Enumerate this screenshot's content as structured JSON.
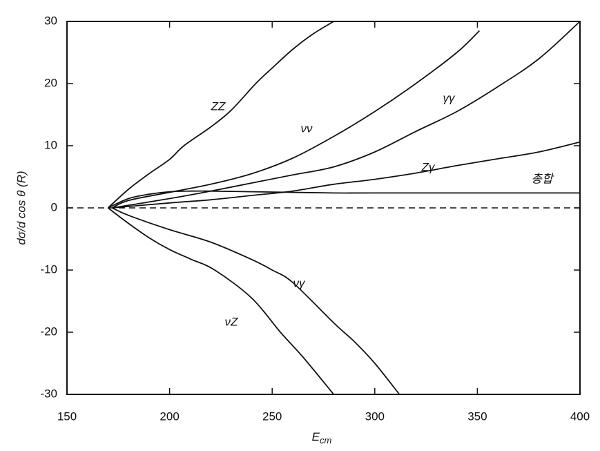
{
  "chart_data": {
    "type": "line",
    "xlabel": "E",
    "xlabel_sub": "cm",
    "ylabel": "dσ/d cos θ (R)",
    "xlim": [
      150,
      400
    ],
    "xticks": [
      150,
      200,
      250,
      300,
      350,
      400
    ],
    "ylim": [
      -30,
      30
    ],
    "yticks": [
      -30,
      -20,
      -10,
      0,
      10,
      20,
      30
    ],
    "reference_line": 0,
    "series": [
      {
        "name": "ZZ",
        "color": "#111111",
        "x": [
          170,
          180,
          190,
          200,
          207,
          220,
          230,
          242,
          250,
          260,
          270,
          280
        ],
        "values": [
          0,
          3,
          5.5,
          7.8,
          10,
          13,
          15.7,
          20,
          22.5,
          25.5,
          28,
          30
        ]
      },
      {
        "name": "νν",
        "color": "#111111",
        "x": [
          172,
          180,
          200,
          220,
          240,
          260,
          280,
          300,
          320,
          340,
          351
        ],
        "values": [
          0,
          1.2,
          2.5,
          3.8,
          5.5,
          8,
          11.5,
          15.5,
          20,
          25,
          28.5
        ]
      },
      {
        "name": "γγ",
        "color": "#111111",
        "x": [
          172,
          200,
          220,
          240,
          260,
          280,
          300,
          320,
          340,
          360,
          380,
          400
        ],
        "values": [
          0,
          1.5,
          2.7,
          4,
          5.3,
          6.6,
          9,
          12.3,
          15.5,
          19.5,
          24,
          30
        ]
      },
      {
        "name": "Zγ",
        "color": "#111111",
        "x": [
          172,
          200,
          220,
          240,
          260,
          280,
          300,
          320,
          340,
          360,
          380,
          400
        ],
        "values": [
          0,
          0.8,
          1.3,
          2,
          2.7,
          3.8,
          4.6,
          5.6,
          6.8,
          7.9,
          9,
          10.6
        ]
      },
      {
        "name": "총합",
        "color": "#111111",
        "x": [
          170,
          180,
          190,
          200,
          210,
          220,
          240,
          260,
          280,
          300,
          350,
          400
        ],
        "values": [
          0,
          1.5,
          2.2,
          2.6,
          2.7,
          2.7,
          2.6,
          2.5,
          2.4,
          2.4,
          2.4,
          2.4
        ]
      },
      {
        "name": "νγ",
        "color": "#111111",
        "x": [
          172,
          180,
          200,
          220,
          240,
          250,
          260,
          280,
          290,
          300,
          312
        ],
        "values": [
          0,
          -1.2,
          -3.5,
          -5.5,
          -8.3,
          -10,
          -12,
          -18.5,
          -21.5,
          -25,
          -30
        ]
      },
      {
        "name": "νZ",
        "color": "#111111",
        "x": [
          170,
          180,
          190,
          200,
          210,
          222,
          240,
          254,
          265,
          280
        ],
        "values": [
          0,
          -2.5,
          -4.8,
          -6.7,
          -8.2,
          -10,
          -14.5,
          -20,
          -24,
          -30
        ]
      }
    ]
  }
}
